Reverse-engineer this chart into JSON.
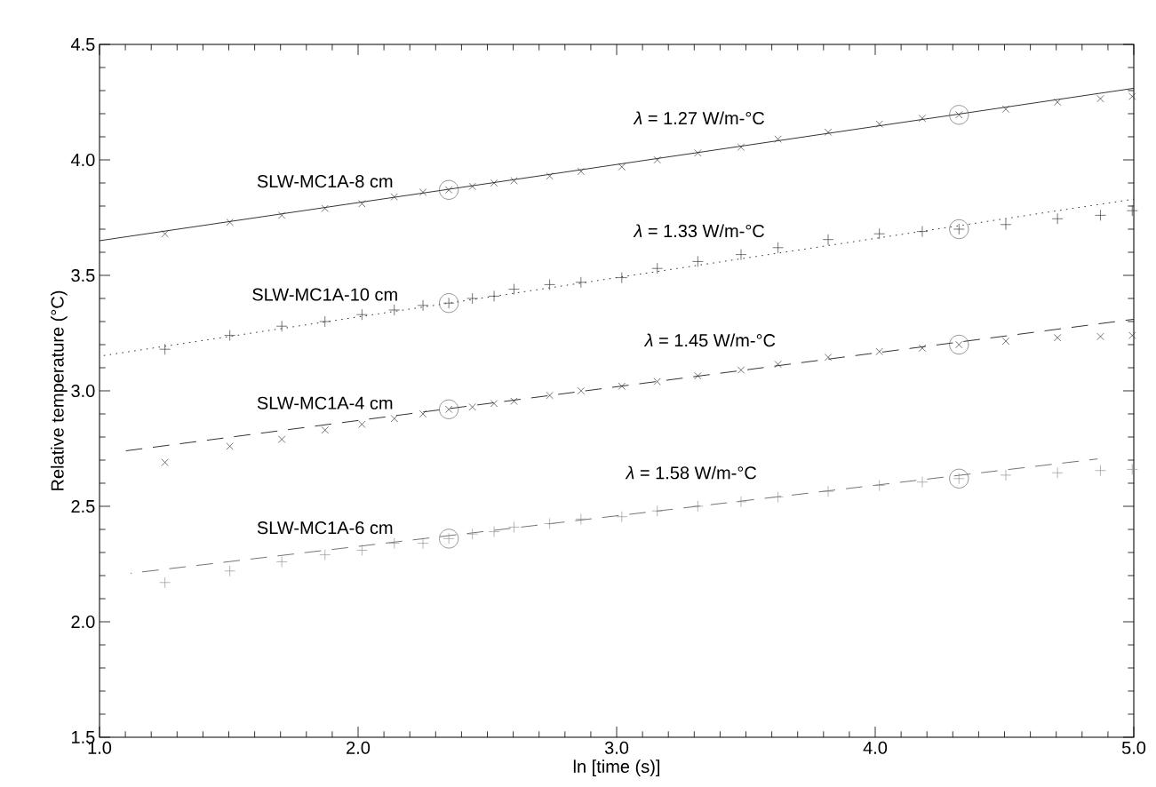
{
  "chart_data": {
    "type": "scatter",
    "xlabel": "ln [time (s)]",
    "ylabel": "Relative temperature (°C)",
    "xlim": [
      1.0,
      5.0
    ],
    "ylim": [
      1.5,
      4.5
    ],
    "xticks": [
      {
        "value": 1.0,
        "label": "1.0"
      },
      {
        "value": 2.0,
        "label": "2.0"
      },
      {
        "value": 3.0,
        "label": "3.0"
      },
      {
        "value": 4.0,
        "label": "4.0"
      },
      {
        "value": 5.0,
        "label": "5.0"
      }
    ],
    "yticks": [
      {
        "value": 1.5,
        "label": "1.5"
      },
      {
        "value": 2.0,
        "label": "2.0"
      },
      {
        "value": 2.5,
        "label": "2.5"
      },
      {
        "value": 3.0,
        "label": "3.0"
      },
      {
        "value": 3.5,
        "label": "3.5"
      },
      {
        "value": 4.0,
        "label": "4.0"
      },
      {
        "value": 4.5,
        "label": "4.5"
      }
    ],
    "x": [
      1.253,
      1.504,
      1.705,
      1.872,
      2.015,
      2.14,
      2.251,
      2.351,
      2.442,
      2.526,
      2.603,
      2.741,
      2.862,
      3.02,
      3.157,
      3.314,
      3.481,
      3.624,
      3.818,
      4.016,
      4.182,
      4.324,
      4.505,
      4.705,
      4.871,
      4.994
    ],
    "grid": false,
    "series": [
      {
        "name": "SLW-MC1A-8 cm",
        "color": "#303030",
        "marker": "cross",
        "values": [
          3.68,
          3.73,
          3.76,
          3.79,
          3.81,
          3.84,
          3.86,
          3.87,
          3.885,
          3.9,
          3.91,
          3.93,
          3.95,
          3.97,
          4.0,
          4.03,
          4.055,
          4.09,
          4.12,
          4.155,
          4.18,
          4.195,
          4.22,
          4.25,
          4.265,
          4.275
        ]
      },
      {
        "name": "SLW-MC1A-10 cm",
        "color": "#303030",
        "marker": "plus",
        "values": [
          3.18,
          3.24,
          3.28,
          3.3,
          3.33,
          3.35,
          3.37,
          3.38,
          3.4,
          3.41,
          3.44,
          3.46,
          3.47,
          3.49,
          3.53,
          3.56,
          3.59,
          3.62,
          3.655,
          3.68,
          3.69,
          3.7,
          3.72,
          3.745,
          3.76,
          3.78
        ]
      },
      {
        "name": "SLW-MC1A-4 cm",
        "color": "#303030",
        "marker": "cross",
        "values": [
          2.69,
          2.76,
          2.79,
          2.83,
          2.855,
          2.88,
          2.9,
          2.92,
          2.93,
          2.945,
          2.955,
          2.98,
          3.0,
          3.02,
          3.04,
          3.065,
          3.09,
          3.115,
          3.145,
          3.17,
          3.185,
          3.2,
          3.215,
          3.23,
          3.235,
          3.24
        ]
      },
      {
        "name": "SLW-MC1A-6 cm",
        "color": "#909090",
        "marker": "plus",
        "values": [
          2.17,
          2.22,
          2.26,
          2.29,
          2.31,
          2.34,
          2.34,
          2.36,
          2.38,
          2.39,
          2.41,
          2.425,
          2.445,
          2.455,
          2.48,
          2.5,
          2.52,
          2.54,
          2.565,
          2.59,
          2.605,
          2.62,
          2.635,
          2.645,
          2.655,
          2.66
        ]
      },
      {
        "type": "scatter",
        "color": "#606060",
        "marker": "circle",
        "x": [
          2.351,
          2.351,
          2.351,
          2.351,
          4.324,
          4.324,
          4.324,
          4.324
        ],
        "values": [
          3.87,
          3.38,
          2.92,
          2.36,
          4.195,
          3.7,
          3.2,
          2.62
        ]
      },
      {
        "type": "line",
        "color": "#000000",
        "marker": "none",
        "line_style": "solid",
        "x": [
          1.0,
          5.0
        ],
        "values": [
          3.65,
          4.31
        ]
      },
      {
        "type": "line",
        "color": "#000000",
        "marker": "none",
        "line_style": "dotted",
        "x": [
          1.0,
          5.0
        ],
        "values": [
          3.15,
          3.83
        ]
      },
      {
        "type": "line",
        "color": "#000000",
        "marker": "none",
        "line_style": "dashed",
        "x": [
          1.1,
          5.0
        ],
        "values": [
          2.74,
          3.31
        ]
      },
      {
        "type": "line",
        "color": "#505050",
        "marker": "none",
        "line_style": "dashed",
        "x": [
          1.12,
          4.86
        ],
        "values": [
          2.21,
          2.705
        ]
      }
    ],
    "annotations": [
      "*λ* = 1.27 W/m-°C",
      "*λ* = 1.33 W/m-°C",
      "*λ* = 1.45 W/m-°C",
      "*λ* = 1.58 W/m-°C"
    ]
  }
}
